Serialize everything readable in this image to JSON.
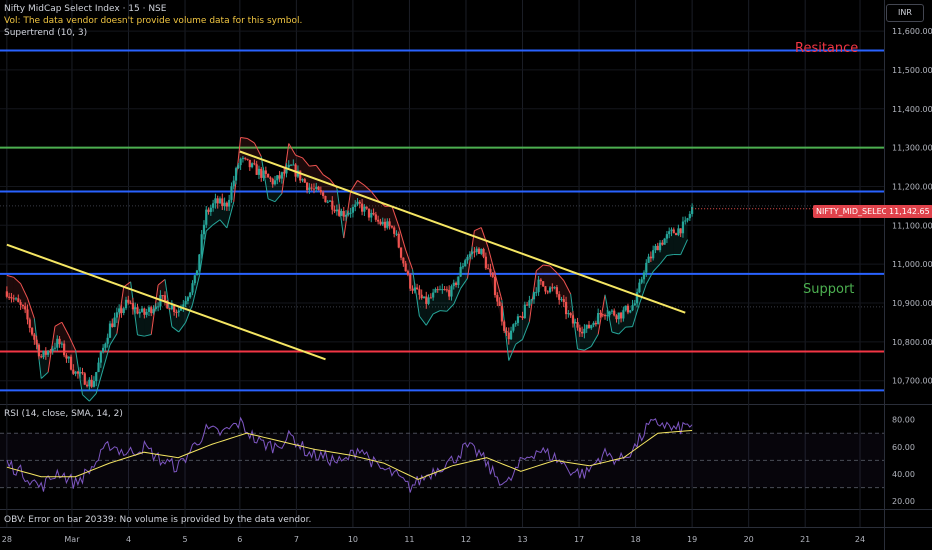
{
  "header": {
    "symbol_line": "Nifty MidCap Select Index · 15 · NSE",
    "volume_note": "Vol: The data vendor doesn't provide volume data for this symbol.",
    "supertrend_label": "Supertrend (10, 3)",
    "currency": "INR"
  },
  "rsi_pane": {
    "label": "RSI (14, close, SMA, 14, 2)",
    "ticks": [
      "80.00",
      "60.00",
      "40.00",
      "20.00"
    ],
    "tick_values": [
      80,
      60,
      40,
      20
    ],
    "bands": [
      70,
      50,
      30
    ]
  },
  "obv_pane": {
    "error_text": "OBV: Error on bar 20339: No volume is provided by the data vendor."
  },
  "annotations": {
    "resistance": "Resitance",
    "support": "Support"
  },
  "price_tag": {
    "symbol": "NIFTY_MID_SELECT",
    "value": "11,142.65",
    "price": 11142.65
  },
  "colors": {
    "up": "#26a69a",
    "down": "#ef5350",
    "blue_line": "#2962ff",
    "green_line": "#4caf50",
    "red_line": "#f23645",
    "trendline": "#f5e663",
    "rsi": "#7e57c2",
    "rsi_ma": "#f5e663",
    "resistance_text": "#f23645",
    "support_text": "#4caf50"
  },
  "chart_data": {
    "type": "candlestick",
    "title": "Nifty MidCap Select Index · 15 · NSE",
    "y_axis": {
      "ticks": [
        "11,600.00",
        "11,500.00",
        "11,400.00",
        "11,300.00",
        "11,200.00",
        "11,100.00",
        "11,000.00",
        "10,900.00",
        "10,800.00",
        "10,700.00"
      ],
      "tick_values": [
        11600,
        11500,
        11400,
        11300,
        11200,
        11100,
        11000,
        10900,
        10800,
        10700
      ],
      "range": [
        10640,
        11680
      ]
    },
    "x_axis": {
      "ticks": [
        "28",
        "Mar",
        "4",
        "5",
        "6",
        "7",
        "10",
        "11",
        "12",
        "13",
        "17",
        "18",
        "19",
        "20",
        "21",
        "24"
      ],
      "tick_positions": [
        0,
        1.9,
        3.55,
        5.2,
        6.8,
        8.45,
        10.1,
        11.75,
        13.4,
        15.05,
        16.7,
        18.35,
        20.0,
        21.65,
        23.3,
        24.9
      ]
    },
    "horizontal_levels": [
      {
        "price": 11550,
        "color": "#2962ff"
      },
      {
        "price": 11300,
        "color": "#4caf50"
      },
      {
        "price": 11187,
        "color": "#2962ff"
      },
      {
        "price": 10975,
        "color": "#2962ff"
      },
      {
        "price": 10775,
        "color": "#f23645"
      },
      {
        "price": 10675,
        "color": "#2962ff"
      }
    ],
    "trendlines": [
      {
        "from": [
          0,
          11050
        ],
        "to": [
          9.3,
          10755
        ]
      },
      {
        "from": [
          6.8,
          11290
        ],
        "to": [
          19.8,
          10875
        ]
      }
    ],
    "price_path": [
      [
        0,
        10930
      ],
      [
        0.5,
        10880
      ],
      [
        1.0,
        10760
      ],
      [
        1.5,
        10800
      ],
      [
        2.0,
        10720
      ],
      [
        2.5,
        10690
      ],
      [
        3.0,
        10840
      ],
      [
        3.5,
        10900
      ],
      [
        4.0,
        10870
      ],
      [
        4.5,
        10910
      ],
      [
        5.0,
        10880
      ],
      [
        5.5,
        10960
      ],
      [
        5.8,
        11130
      ],
      [
        6.1,
        11160
      ],
      [
        6.4,
        11150
      ],
      [
        6.8,
        11270
      ],
      [
        7.3,
        11240
      ],
      [
        7.8,
        11210
      ],
      [
        8.3,
        11250
      ],
      [
        8.8,
        11200
      ],
      [
        9.3,
        11170
      ],
      [
        9.8,
        11130
      ],
      [
        10.3,
        11150
      ],
      [
        10.8,
        11110
      ],
      [
        11.3,
        11090
      ],
      [
        11.75,
        10950
      ],
      [
        12.2,
        10900
      ],
      [
        12.6,
        10930
      ],
      [
        13.0,
        10930
      ],
      [
        13.4,
        11020
      ],
      [
        13.8,
        11040
      ],
      [
        14.2,
        10950
      ],
      [
        14.6,
        10810
      ],
      [
        15.05,
        10870
      ],
      [
        15.5,
        10950
      ],
      [
        16.0,
        10930
      ],
      [
        16.5,
        10850
      ],
      [
        16.9,
        10830
      ],
      [
        17.4,
        10880
      ],
      [
        17.9,
        10870
      ],
      [
        18.35,
        10900
      ],
      [
        18.6,
        10990
      ],
      [
        19.0,
        11050
      ],
      [
        19.4,
        11080
      ],
      [
        19.8,
        11100
      ],
      [
        20.0,
        11145
      ]
    ],
    "rsi_path": [
      [
        0,
        48
      ],
      [
        0.5,
        40
      ],
      [
        1.0,
        30
      ],
      [
        1.5,
        42
      ],
      [
        2.0,
        33
      ],
      [
        2.5,
        45
      ],
      [
        3.0,
        62
      ],
      [
        3.5,
        55
      ],
      [
        4.0,
        60
      ],
      [
        4.5,
        50
      ],
      [
        5.0,
        45
      ],
      [
        5.5,
        62
      ],
      [
        5.8,
        72
      ],
      [
        6.3,
        70
      ],
      [
        6.8,
        78
      ],
      [
        7.3,
        64
      ],
      [
        7.8,
        60
      ],
      [
        8.3,
        68
      ],
      [
        8.8,
        55
      ],
      [
        9.3,
        52
      ],
      [
        9.8,
        48
      ],
      [
        10.3,
        60
      ],
      [
        10.8,
        45
      ],
      [
        11.3,
        40
      ],
      [
        11.75,
        30
      ],
      [
        12.2,
        38
      ],
      [
        12.6,
        45
      ],
      [
        13.0,
        50
      ],
      [
        13.4,
        60
      ],
      [
        13.8,
        55
      ],
      [
        14.2,
        40
      ],
      [
        14.6,
        32
      ],
      [
        15.05,
        50
      ],
      [
        15.5,
        58
      ],
      [
        16.0,
        52
      ],
      [
        16.5,
        42
      ],
      [
        16.9,
        40
      ],
      [
        17.4,
        55
      ],
      [
        17.9,
        50
      ],
      [
        18.35,
        60
      ],
      [
        18.7,
        75
      ],
      [
        19.1,
        78
      ],
      [
        19.5,
        72
      ],
      [
        20.0,
        77
      ]
    ],
    "rsi_ma_path": [
      [
        0,
        45
      ],
      [
        1.0,
        38
      ],
      [
        2.0,
        38
      ],
      [
        3.0,
        48
      ],
      [
        4.0,
        56
      ],
      [
        5.0,
        52
      ],
      [
        6.0,
        62
      ],
      [
        7.0,
        70
      ],
      [
        8.0,
        64
      ],
      [
        9.0,
        58
      ],
      [
        10.0,
        54
      ],
      [
        11.0,
        48
      ],
      [
        12.0,
        36
      ],
      [
        13.0,
        46
      ],
      [
        14.0,
        52
      ],
      [
        15.0,
        42
      ],
      [
        16.0,
        50
      ],
      [
        17.0,
        46
      ],
      [
        18.0,
        52
      ],
      [
        19.0,
        70
      ],
      [
        20.0,
        72
      ]
    ]
  }
}
